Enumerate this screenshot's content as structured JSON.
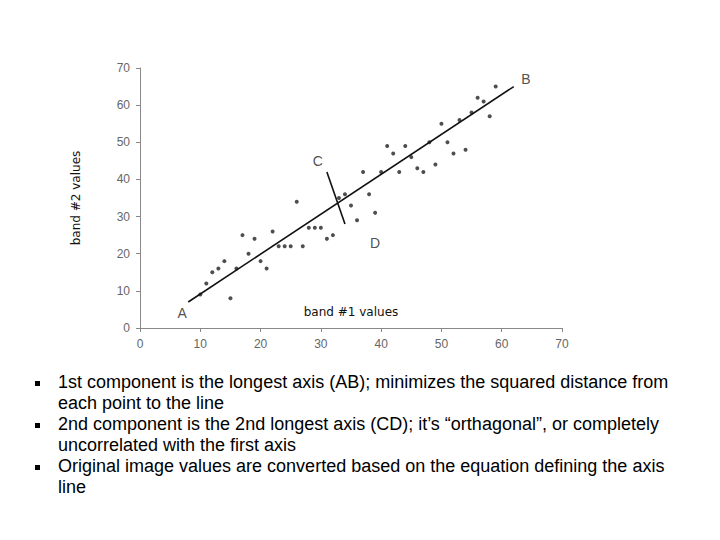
{
  "chart_data": {
    "type": "scatter",
    "x_label": "band #1 values",
    "y_label": "band #2 values",
    "xlim": [
      0,
      70
    ],
    "ylim": [
      0,
      70
    ],
    "xticks": [
      0,
      10,
      20,
      30,
      40,
      50,
      60,
      70
    ],
    "yticks": [
      0,
      10,
      20,
      30,
      40,
      50,
      60,
      70
    ],
    "grid": false,
    "color": "#222222",
    "marker": "circle",
    "x": [
      10,
      11,
      12,
      13,
      14,
      15,
      16,
      17,
      18,
      19,
      20,
      21,
      22,
      23,
      24,
      25,
      26,
      27,
      28,
      29,
      30,
      31,
      32,
      33,
      34,
      35,
      36,
      37,
      38,
      39,
      40,
      41,
      42,
      43,
      44,
      45,
      46,
      47,
      48,
      49,
      50,
      51,
      52,
      53,
      54,
      55,
      56,
      57,
      58,
      59
    ],
    "values": [
      9,
      12,
      15,
      16,
      18,
      8,
      16,
      25,
      20,
      24,
      18,
      16,
      26,
      22,
      22,
      22,
      34,
      22,
      27,
      27,
      27,
      24,
      25,
      35,
      36,
      33,
      29,
      42,
      36,
      31,
      42,
      49,
      47,
      42,
      49,
      46,
      43,
      42,
      50,
      44,
      55,
      50,
      47,
      56,
      48,
      58,
      62,
      61,
      57,
      65
    ],
    "lines": [
      {
        "x": [
          8,
          62
        ],
        "y": [
          7,
          65
        ],
        "color": "#111111",
        "line_style": "solid"
      },
      {
        "x": [
          31,
          34
        ],
        "y": [
          42,
          28
        ],
        "color": "#111111",
        "line_style": "solid"
      }
    ],
    "annotations": [
      {
        "text": "A",
        "x": 7,
        "y": 4
      },
      {
        "text": "B",
        "x": 64,
        "y": 67
      },
      {
        "text": "C",
        "x": 29.5,
        "y": 45
      },
      {
        "text": "D",
        "x": 39,
        "y": 23
      }
    ],
    "notes": [
      "1st component is the longest axis (AB); minimizes the squared distance from each point to the line",
      "2nd component is the 2nd longest axis (CD); it’s “orthagonal”, or completely uncorrelated with the first axis",
      "Original image values are converted based on the equation defining the axis line"
    ]
  }
}
